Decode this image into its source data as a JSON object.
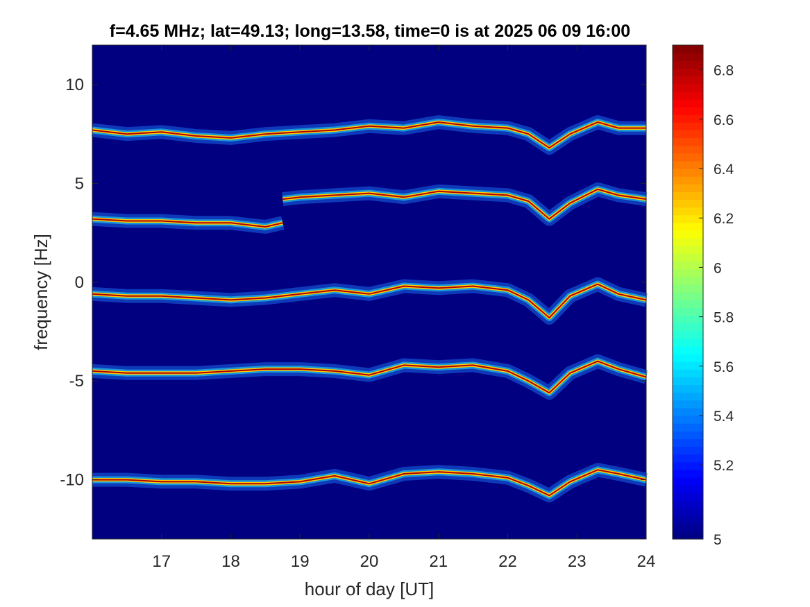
{
  "chart_data": {
    "type": "heatmap",
    "title": "f=4.65 MHz;  lat=49.13; long=13.58, time=0 is at 2025 06 09 16:00",
    "xlabel": "hour of day [UT]",
    "ylabel": "frequency [Hz]",
    "xlim": [
      16,
      24
    ],
    "ylim": [
      -13,
      12
    ],
    "xticks": [
      17,
      18,
      19,
      20,
      21,
      22,
      23,
      24
    ],
    "yticks": [
      10,
      5,
      0,
      -5,
      -10
    ],
    "colorbar": {
      "colormap": "jet",
      "clim": [
        4.9,
        6.9
      ],
      "ticks": [
        4.9,
        5.2,
        5.4,
        5.6,
        5.8,
        6,
        6.2,
        6.4,
        6.6,
        6.8
      ],
      "tick_labels": [
        "5",
        "5.2",
        "5.4",
        "5.6",
        "5.8",
        "6",
        "6.2",
        "6.4",
        "6.6",
        "6.8"
      ]
    },
    "background_color": "#000080",
    "traces": [
      {
        "x": [
          16.0,
          16.5,
          17.0,
          17.5,
          18.0,
          18.5,
          19.0,
          19.5,
          20.0,
          20.5,
          21.0,
          21.5,
          22.0,
          22.3,
          22.6,
          22.9,
          23.3,
          23.6,
          24.0
        ],
        "y": [
          7.7,
          7.5,
          7.6,
          7.4,
          7.3,
          7.5,
          7.6,
          7.7,
          7.9,
          7.8,
          8.1,
          7.9,
          7.8,
          7.5,
          6.8,
          7.5,
          8.1,
          7.8,
          7.8
        ]
      },
      {
        "x": [
          16.0,
          16.5,
          17.0,
          17.5,
          18.0,
          18.5,
          18.75
        ],
        "y": [
          3.2,
          3.1,
          3.1,
          3.0,
          3.0,
          2.8,
          3.0
        ]
      },
      {
        "x": [
          18.75,
          19.0,
          19.5,
          20.0,
          20.5,
          21.0,
          21.5,
          22.0,
          22.3,
          22.6,
          22.9,
          23.3,
          23.6,
          24.0
        ],
        "y": [
          4.2,
          4.3,
          4.4,
          4.5,
          4.3,
          4.6,
          4.5,
          4.4,
          4.1,
          3.2,
          4.0,
          4.7,
          4.4,
          4.2
        ]
      },
      {
        "x": [
          16.0,
          16.5,
          17.0,
          17.5,
          18.0,
          18.5,
          19.0,
          19.5,
          20.0,
          20.5,
          21.0,
          21.5,
          22.0,
          22.3,
          22.6,
          22.9,
          23.3,
          23.6,
          24.0
        ],
        "y": [
          -0.6,
          -0.7,
          -0.7,
          -0.8,
          -0.9,
          -0.8,
          -0.6,
          -0.4,
          -0.6,
          -0.2,
          -0.3,
          -0.2,
          -0.4,
          -0.9,
          -1.8,
          -0.7,
          -0.1,
          -0.6,
          -0.9
        ]
      },
      {
        "x": [
          16.0,
          16.5,
          17.0,
          17.5,
          18.0,
          18.5,
          19.0,
          19.5,
          20.0,
          20.5,
          21.0,
          21.5,
          22.0,
          22.3,
          22.6,
          22.9,
          23.3,
          23.6,
          24.0
        ],
        "y": [
          -4.5,
          -4.6,
          -4.6,
          -4.6,
          -4.5,
          -4.4,
          -4.4,
          -4.5,
          -4.7,
          -4.2,
          -4.3,
          -4.2,
          -4.5,
          -5.0,
          -5.6,
          -4.6,
          -4.0,
          -4.4,
          -4.8
        ]
      },
      {
        "x": [
          16.0,
          16.5,
          17.0,
          17.5,
          18.0,
          18.5,
          19.0,
          19.5,
          20.0,
          20.5,
          21.0,
          21.5,
          22.0,
          22.3,
          22.6,
          22.9,
          23.3,
          23.6,
          24.0
        ],
        "y": [
          -10.0,
          -10.0,
          -10.1,
          -10.1,
          -10.2,
          -10.2,
          -10.1,
          -9.8,
          -10.2,
          -9.7,
          -9.6,
          -9.7,
          -9.9,
          -10.3,
          -10.8,
          -10.1,
          -9.5,
          -9.7,
          -10.0
        ]
      }
    ]
  }
}
